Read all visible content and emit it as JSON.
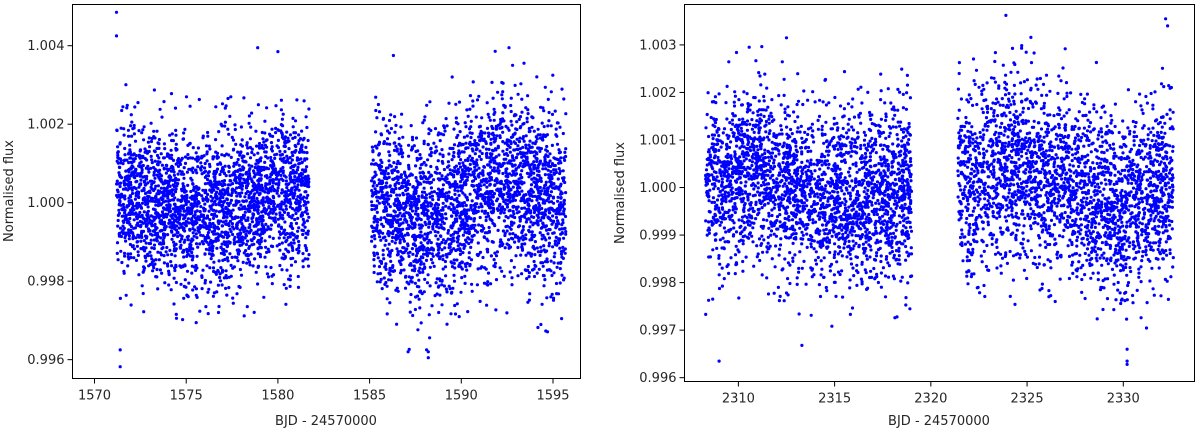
{
  "chart_data": [
    {
      "type": "scatter",
      "xlabel": "BJD - 24570000",
      "ylabel": "Normalised flux",
      "xlim": [
        1568.8,
        1596.5
      ],
      "ylim": [
        0.99552,
        1.00505
      ],
      "xticks": [
        1570,
        1575,
        1580,
        1585,
        1590,
        1595
      ],
      "xtick_labels": [
        "1570",
        "1575",
        "1580",
        "1585",
        "1590",
        "1595"
      ],
      "yticks": [
        0.996,
        0.998,
        1.0,
        1.002,
        1.004
      ],
      "ytick_labels": [
        "0.996",
        "0.998",
        "1.000",
        "1.002",
        "1.004"
      ],
      "point_color": "#0000ff",
      "grid": false,
      "segments": [
        {
          "x_start": 1571.2,
          "x_end": 1581.7,
          "center": 1.0,
          "noise": 0.00095,
          "trend": [
            [
              1571.2,
              1.0002
            ],
            [
              1573.5,
              1.0
            ],
            [
              1576.5,
              0.9997
            ],
            [
              1579.0,
              1.0001
            ],
            [
              1581.7,
              1.0004
            ]
          ],
          "count": 2600
        },
        {
          "x_start": 1585.1,
          "x_end": 1595.7,
          "center": 1.0,
          "noise": 0.0011,
          "trend": [
            [
              1585.1,
              1.0
            ],
            [
              1587.5,
              0.9994
            ],
            [
              1589.5,
              0.9999
            ],
            [
              1592.0,
              1.0006
            ],
            [
              1593.8,
              1.0002
            ],
            [
              1595.7,
              0.9998
            ]
          ],
          "count": 2600
        }
      ],
      "outliers": [
        {
          "x": 1571.2,
          "y": 1.00485
        },
        {
          "x": 1571.2,
          "y": 1.00425
        },
        {
          "x": 1571.4,
          "y": 0.99625
        },
        {
          "x": 1571.4,
          "y": 0.99582
        },
        {
          "x": 1578.9,
          "y": 1.00395
        },
        {
          "x": 1580.0,
          "y": 1.00385
        },
        {
          "x": 1588.2,
          "y": 0.9962
        },
        {
          "x": 1588.2,
          "y": 0.99605
        },
        {
          "x": 1592.6,
          "y": 1.00395
        },
        {
          "x": 1586.3,
          "y": 1.00375
        }
      ]
    },
    {
      "type": "scatter",
      "xlabel": "BJD - 24570000",
      "ylabel": "Normalised flux",
      "xlim": [
        2307.2,
        2333.7
      ],
      "ylim": [
        0.99592,
        1.00385
      ],
      "xticks": [
        2310,
        2315,
        2320,
        2325,
        2330
      ],
      "xtick_labels": [
        "2310",
        "2315",
        "2320",
        "2325",
        "2330"
      ],
      "yticks": [
        0.996,
        0.997,
        0.998,
        0.999,
        1.0,
        1.001,
        1.002,
        1.003
      ],
      "ytick_labels": [
        "0.996",
        "0.997",
        "0.998",
        "0.999",
        "1.000",
        "1.001",
        "1.002",
        "1.003"
      ],
      "point_color": "#0000ff",
      "grid": false,
      "segments": [
        {
          "x_start": 2308.3,
          "x_end": 2319.0,
          "center": 1.0,
          "noise": 0.0009,
          "trend": [
            [
              2308.3,
              1.0
            ],
            [
              2311.0,
              1.0003
            ],
            [
              2314.0,
              0.9998
            ],
            [
              2316.5,
              0.9997
            ],
            [
              2319.0,
              1.0001
            ]
          ],
          "count": 2600
        },
        {
          "x_start": 2321.4,
          "x_end": 2332.6,
          "center": 1.0,
          "noise": 0.00095,
          "trend": [
            [
              2321.4,
              1.0002
            ],
            [
              2324.5,
              1.0004
            ],
            [
              2327.5,
              1.0
            ],
            [
              2330.0,
              0.9995
            ],
            [
              2332.6,
              1.0003
            ]
          ],
          "count": 2600
        }
      ],
      "outliers": [
        {
          "x": 2309.0,
          "y": 0.99635
        },
        {
          "x": 2330.2,
          "y": 0.9966
        },
        {
          "x": 2330.2,
          "y": 0.99635
        },
        {
          "x": 2330.2,
          "y": 0.99628
        },
        {
          "x": 2332.2,
          "y": 1.00355
        },
        {
          "x": 2332.3,
          "y": 1.0034
        },
        {
          "x": 2323.9,
          "y": 1.00362
        },
        {
          "x": 2313.3,
          "y": 0.99668
        },
        {
          "x": 2312.5,
          "y": 1.00315
        }
      ]
    }
  ]
}
